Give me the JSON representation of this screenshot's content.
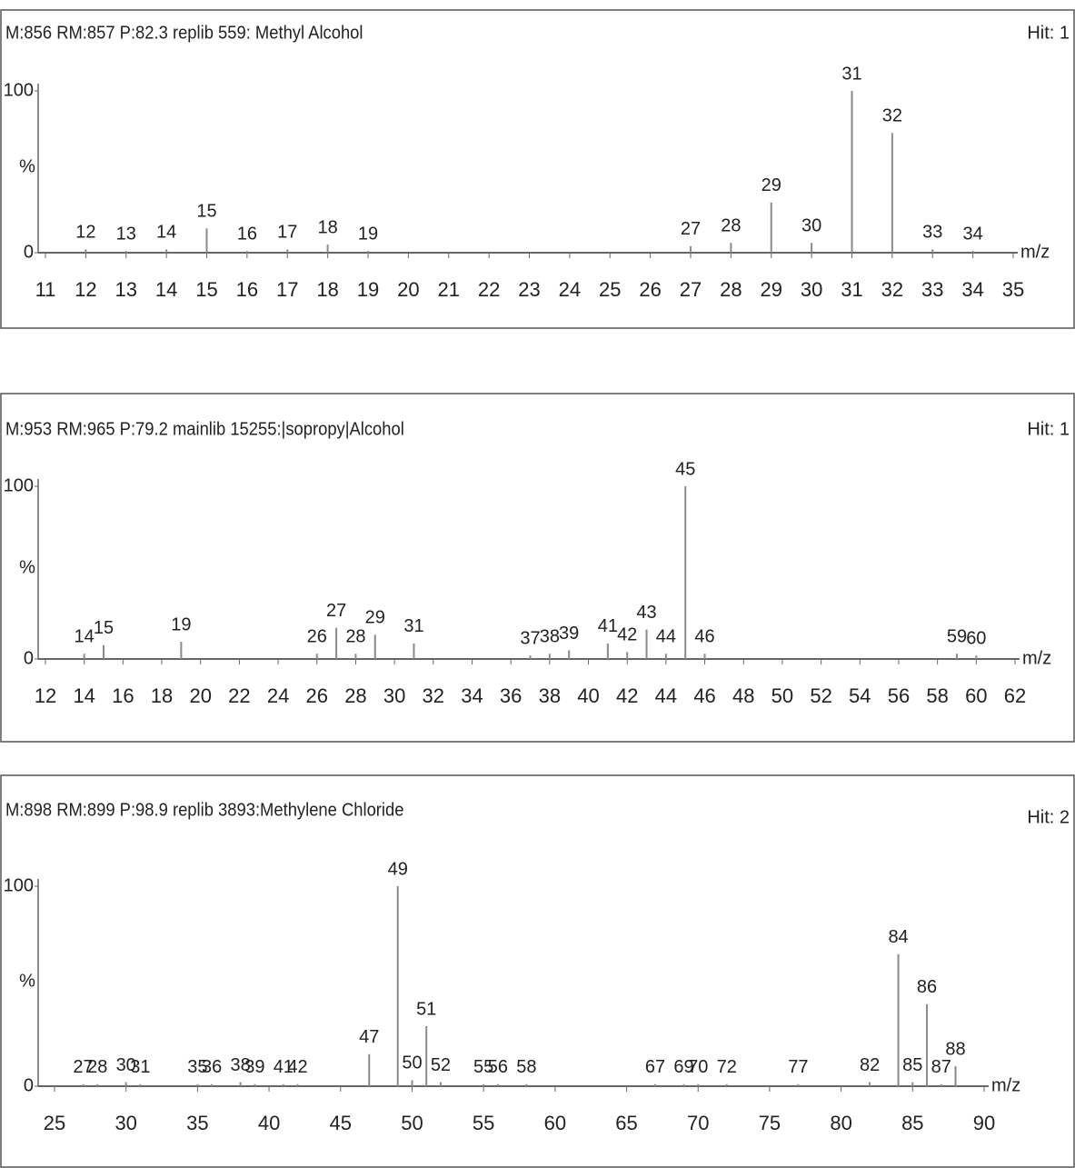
{
  "chart_data": [
    {
      "type": "bar",
      "title": "M:856 RM:857 P:82.3 replib 559: Methyl Alcohol",
      "hit": "Hit: 1",
      "y_label": "%",
      "x_label": "m/z",
      "color": "#8a8a8a",
      "x": [
        12,
        13,
        14,
        15,
        16,
        17,
        18,
        19,
        27,
        28,
        29,
        30,
        31,
        32,
        33,
        34
      ],
      "values": [
        2,
        1,
        2,
        15,
        1,
        2,
        5,
        1,
        4,
        6,
        31,
        6,
        100,
        74,
        2,
        1
      ],
      "xlim": [
        11,
        35
      ],
      "xticks": [
        11,
        12,
        13,
        14,
        15,
        16,
        17,
        18,
        19,
        20,
        21,
        22,
        23,
        24,
        25,
        26,
        27,
        28,
        29,
        30,
        31,
        32,
        33,
        34,
        35
      ],
      "ylim": [
        0,
        100
      ],
      "yticks": [
        0,
        100
      ]
    },
    {
      "type": "bar",
      "title": "M:953 RM:965 P:79.2 mainlib 15255:|sopropy|Alcohol",
      "hit": "Hit: 1",
      "y_label": "%",
      "x_label": "m/z",
      "color": "#8a8a8a",
      "x": [
        14,
        15,
        19,
        26,
        27,
        28,
        29,
        31,
        37,
        38,
        39,
        41,
        42,
        43,
        44,
        45,
        46,
        59,
        60
      ],
      "values": [
        3,
        8,
        10,
        3,
        18,
        3,
        14,
        9,
        2,
        3,
        5,
        9,
        4,
        17,
        3,
        100,
        3,
        3,
        2
      ],
      "xlim": [
        12,
        62
      ],
      "xticks": [
        12,
        14,
        16,
        18,
        20,
        22,
        24,
        26,
        28,
        30,
        32,
        34,
        36,
        38,
        40,
        42,
        44,
        46,
        48,
        50,
        52,
        54,
        56,
        58,
        60,
        62
      ],
      "ylim": [
        0,
        100
      ],
      "yticks": [
        0,
        100
      ]
    },
    {
      "type": "bar",
      "title": "M:898 RM:899 P:98.9 replib 3893:Methylene Chloride",
      "hit": "Hit: 2",
      "y_label": "%",
      "x_label": "m/z",
      "color": "#8a8a8a",
      "x": [
        27,
        28,
        30,
        31,
        35,
        36,
        38,
        39,
        41,
        42,
        47,
        49,
        50,
        51,
        52,
        55,
        56,
        58,
        67,
        69,
        70,
        72,
        77,
        82,
        84,
        85,
        86,
        87,
        88
      ],
      "values": [
        1,
        1,
        2,
        1,
        1,
        1,
        2,
        1,
        1,
        1,
        16,
        100,
        3,
        30,
        2,
        1,
        1,
        1,
        1,
        1,
        1,
        1,
        1,
        2,
        66,
        2,
        41,
        1,
        10
      ],
      "xlim": [
        25,
        90
      ],
      "xticks": [
        25,
        30,
        35,
        40,
        45,
        50,
        55,
        60,
        65,
        70,
        75,
        80,
        85,
        90
      ],
      "ylim": [
        0,
        100
      ],
      "yticks": [
        0,
        100
      ]
    }
  ]
}
